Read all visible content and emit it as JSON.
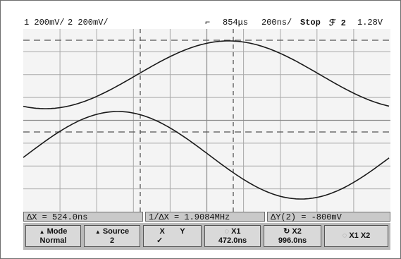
{
  "status": {
    "ch1": "1 200mV/",
    "ch2": "2 200mV/",
    "trigger_marker": "⌐",
    "delay": "854μs",
    "timebase": "200ns/",
    "run_state": "Stop",
    "trigger_symbol": "ℱ 2",
    "trigger_level": "1.28V"
  },
  "measurements": {
    "delta_x": "ΔX = 524.0ns",
    "inv_delta_x": "1/ΔX = 1.9084MHz",
    "delta_y": "ΔY(2) = -800mV"
  },
  "softkeys": {
    "mode_label": "Mode",
    "mode_value": "Normal",
    "source_label": "Source",
    "source_value": "2",
    "xy_x": "X",
    "xy_y": "Y",
    "xy_check": "✓",
    "x1_label": "X1",
    "x1_value": "472.0ns",
    "x2_label": "X2",
    "x2_value": "996.0ns",
    "x1x2_label": "X1 X2"
  },
  "colors": {
    "screen_bg": "#f4f4f4",
    "grid": "#a9a9a9",
    "trace": "#1a1a1a",
    "softkey_bar": "#b9b9b9"
  }
}
